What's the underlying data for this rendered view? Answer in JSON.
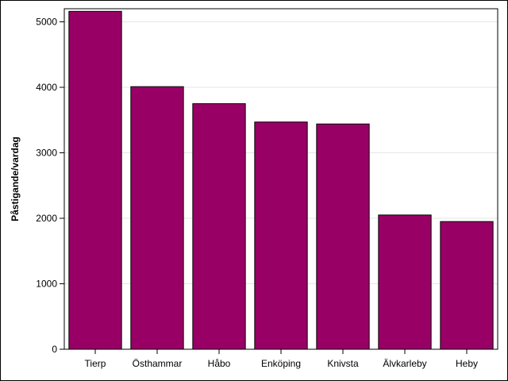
{
  "chart_data": {
    "type": "bar",
    "title": "",
    "xlabel": "",
    "ylabel": "Påstigande/vardag",
    "categories": [
      "Tierp",
      "Östhammar",
      "Håbo",
      "Enköping",
      "Knivsta",
      "Älvkarleby",
      "Heby"
    ],
    "values": [
      5160,
      4010,
      3750,
      3470,
      3440,
      2050,
      1950
    ],
    "ylim": [
      0,
      5200
    ],
    "yticks": [
      0,
      1000,
      2000,
      3000,
      4000,
      5000
    ],
    "grid": true,
    "legend": "none",
    "colors": {
      "bar_fill": "#990066",
      "bar_stroke": "#000000",
      "grid": "#e6e6e6",
      "axis": "#000000"
    }
  }
}
